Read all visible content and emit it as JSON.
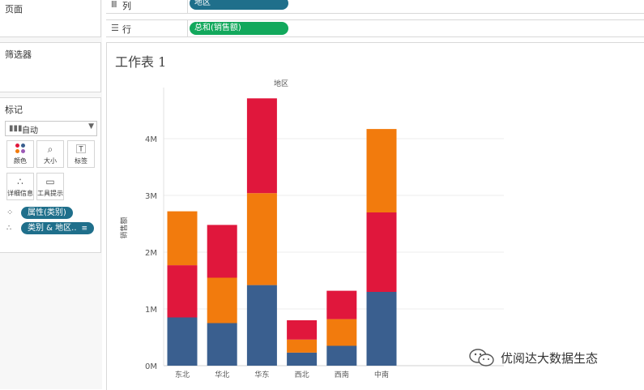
{
  "left_pane": {
    "pages_title": "页面",
    "filters_title": "筛选器",
    "marks": {
      "title": "标记",
      "mark_type": "自动",
      "buttons": [
        {
          "label": "颜色",
          "icon": "color-dots-icon"
        },
        {
          "label": "大小",
          "icon": "size-icon"
        },
        {
          "label": "标签",
          "icon": "label-icon"
        },
        {
          "label": "详细信息",
          "icon": "detail-icon"
        },
        {
          "label": "工具提示",
          "icon": "tooltip-icon"
        }
      ],
      "pills": [
        {
          "label": "属性(类别)",
          "icon": "color-dots-icon"
        },
        {
          "label": "类别 & 地区..",
          "icon": "detail-icon"
        }
      ]
    }
  },
  "shelves": {
    "columns": {
      "label": "列",
      "pill": "地区"
    },
    "rows": {
      "label": "行",
      "pill": "总和(销售额)"
    }
  },
  "sheet": {
    "title": "工作表 1"
  },
  "colors": {
    "blue": "#3a5f8f",
    "orange": "#f27b0d",
    "red": "#e0173c",
    "column_pill": "#1f6f8b",
    "row_pill": "#12a85c"
  },
  "chart_data": {
    "type": "bar",
    "stacked": true,
    "title": "地区",
    "xlabel": "",
    "ylabel": "销售额",
    "categories": [
      "东北",
      "华北",
      "华东",
      "西北",
      "西南",
      "中南"
    ],
    "ylim": [
      0,
      4900000
    ],
    "y_ticks": [
      0,
      1000000,
      2000000,
      3000000,
      4000000
    ],
    "y_tick_labels": [
      "0M",
      "1M",
      "2M",
      "3M",
      "4M"
    ],
    "series": [
      {
        "color": "#3a5f8f",
        "values": [
          850000,
          750000,
          1420000,
          230000,
          350000,
          1300000
        ]
      },
      {
        "color": "#f27b0d",
        "values": [
          0,
          800000,
          0,
          230000,
          470000,
          0
        ]
      },
      {
        "color": "#e0173c",
        "values": [
          920000,
          930000,
          0,
          340000,
          500000,
          0
        ]
      },
      {
        "color": "#f27b0d",
        "values": [
          950000,
          0,
          0,
          0,
          0,
          0
        ]
      },
      {
        "color": "#f27b0d",
        "values": [
          0,
          0,
          1620000,
          0,
          0,
          0
        ]
      },
      {
        "color": "#e0173c",
        "values": [
          0,
          0,
          1670000,
          0,
          0,
          1400000
        ]
      },
      {
        "color": "#f27b0d",
        "values": [
          0,
          0,
          0,
          0,
          0,
          1470000
        ]
      }
    ],
    "grid": true,
    "legend": "none"
  },
  "watermark": {
    "text": "优阅达大数据生态"
  }
}
